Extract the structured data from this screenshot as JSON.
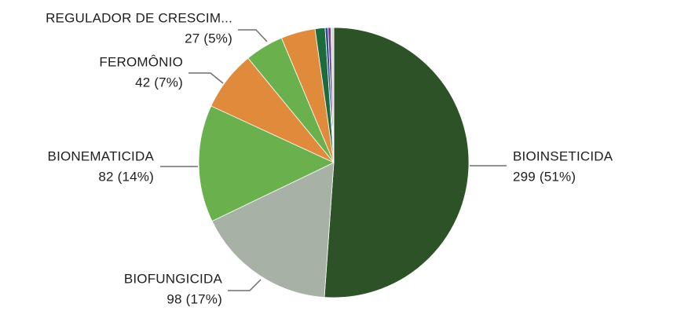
{
  "chart_data": {
    "type": "pie",
    "categories": [
      "BIOINSETICIDA",
      "BIOFUNGICIDA",
      "BIONEMATICIDA",
      "FEROMÔNIO",
      "REGULADOR DE CRESCIM...",
      null,
      null,
      null,
      null,
      null
    ],
    "values": [
      299,
      98,
      82,
      42,
      27,
      24,
      7,
      2,
      2,
      2
    ],
    "value_labels": [
      "299 (51%)",
      "98 (17%)",
      "82 (14%)",
      "42 (7%)",
      "27 (5%)",
      null,
      null,
      null,
      null,
      null
    ],
    "colors": [
      "#2d5227",
      "#a8b1a5",
      "#6ab04c",
      "#e08a3c",
      "#6ab04c",
      "#e08a3c",
      "#1b6b3c",
      "#2b4d8f",
      "#6b3d8c",
      "#d8d8d8"
    ]
  }
}
